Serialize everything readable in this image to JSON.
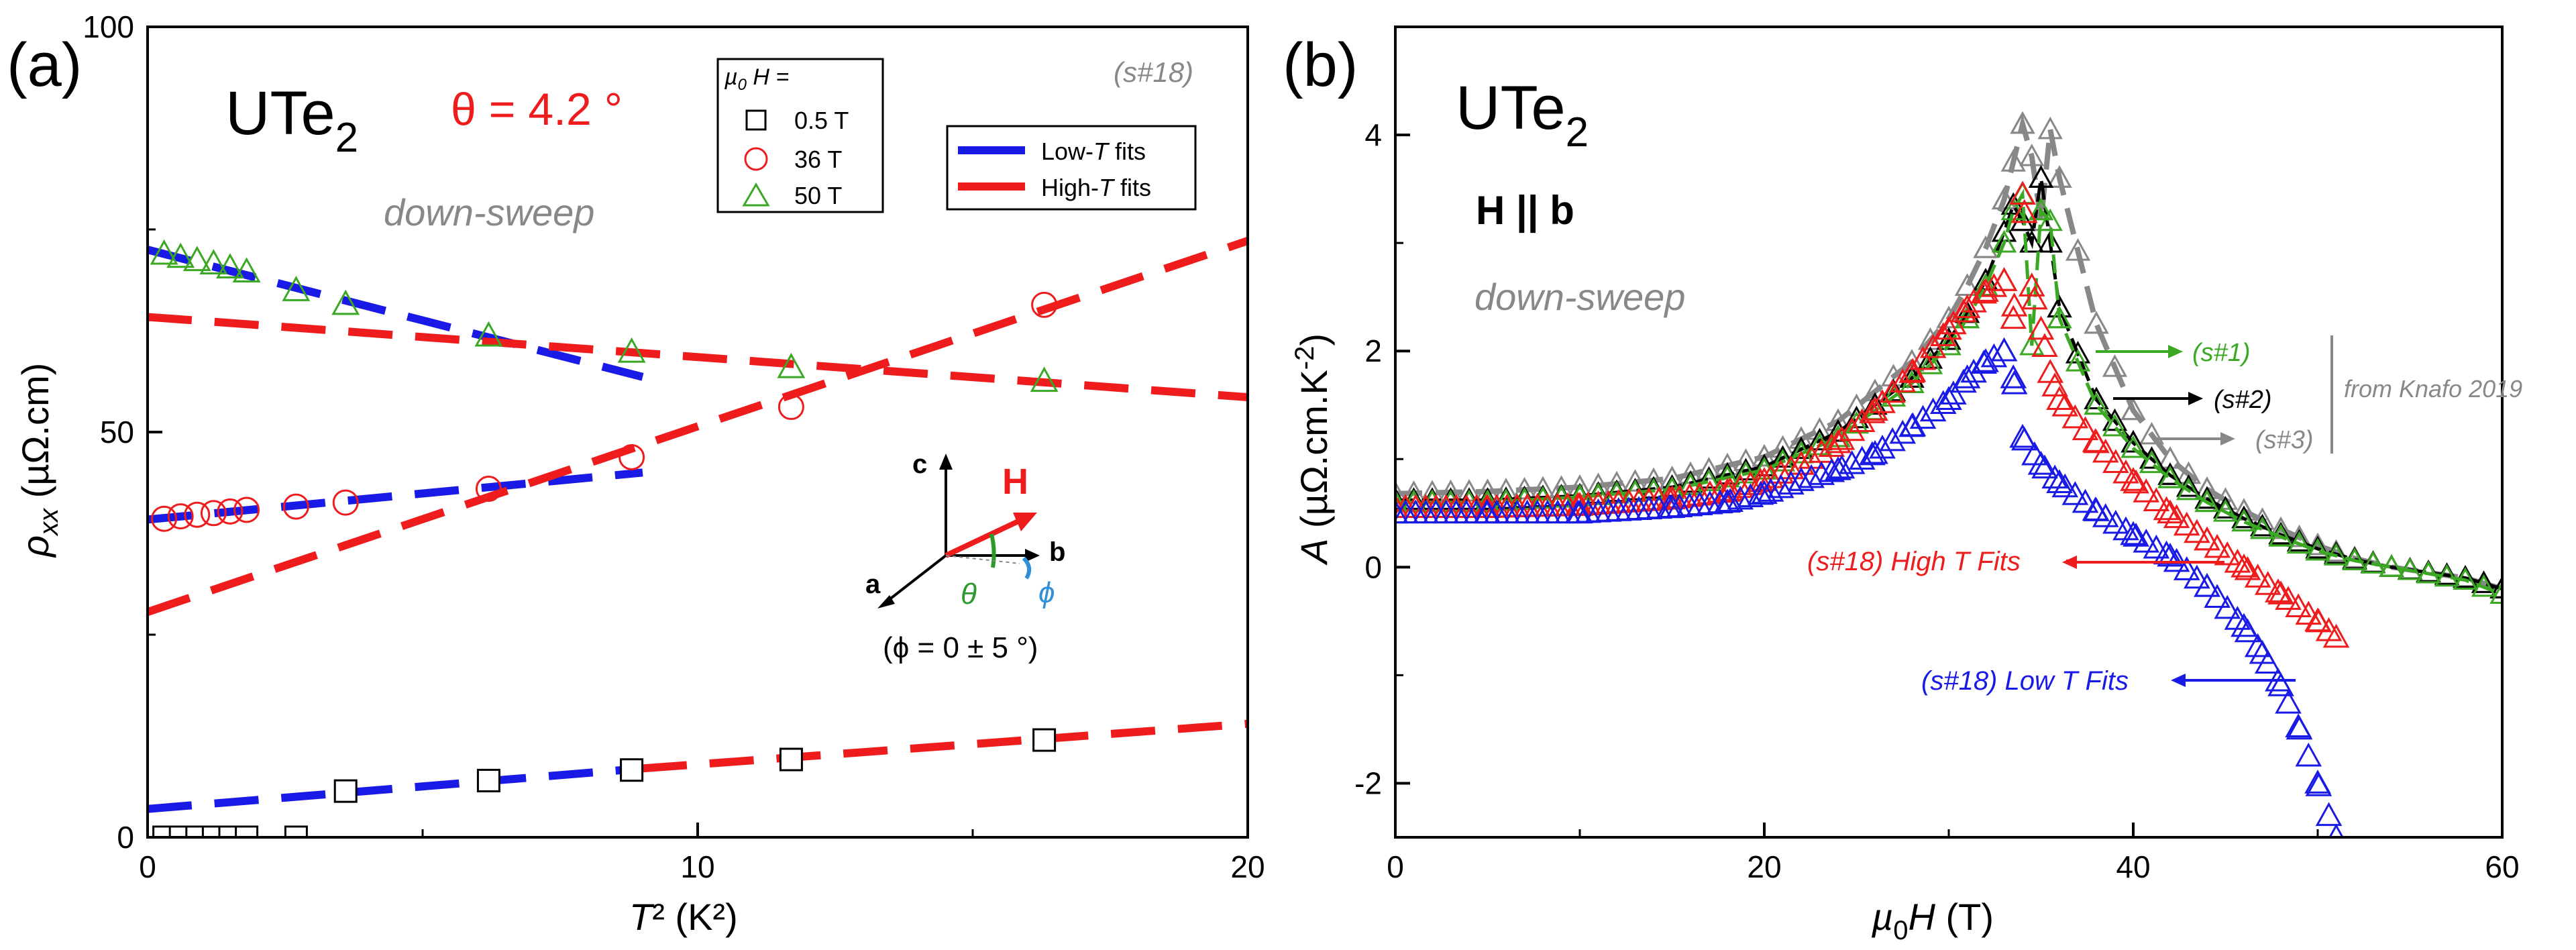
{
  "colors": {
    "blue": "#1a1ae6",
    "red": "#ee1c1c",
    "green": "#3aa822",
    "black": "#000000",
    "gray": "#888888",
    "cyan": "#2f8fd8",
    "dgreen": "#2a9a2a"
  },
  "chart_data": [
    {
      "type": "scatter",
      "panel": "(a)",
      "title": "UTe",
      "title_sub": "2",
      "theta_label": "θ = 4.2 °",
      "sample_tag": "(s#18)",
      "sweep_label": "down-sweep",
      "xlabel_main": "T² (K²)",
      "ylabel_rho": "ρ",
      "ylabel_sub": "xx",
      "ylabel_unit": " (µΩ.cm)",
      "xlim": [
        0,
        20
      ],
      "ylim": [
        0,
        100
      ],
      "xticks": [
        0,
        10,
        20
      ],
      "yticks": [
        0,
        50,
        100
      ],
      "legend_header_mu": "µ",
      "legend_header_sub": "0",
      "legend_header_rest": "H =",
      "legend_markers": [
        {
          "label": "0.5 T",
          "marker": "square",
          "color": "#000000"
        },
        {
          "label": "36 T",
          "marker": "circle",
          "color": "#ee1c1c"
        },
        {
          "label": "50 T",
          "marker": "triangle",
          "color": "#3aa822"
        }
      ],
      "legend_fits": [
        {
          "label_pre": "Low-",
          "label_T": "T",
          "label_post": " fits",
          "color": "#1a1ae6"
        },
        {
          "label_pre": "High-",
          "label_T": "T",
          "label_post": " fits",
          "color": "#ee1c1c"
        }
      ],
      "series": [
        {
          "name": "0.5 T",
          "marker": "square",
          "color": "#000000",
          "x": [
            0.3,
            0.6,
            0.9,
            1.2,
            1.5,
            1.8,
            2.7,
            3.6,
            6.2,
            8.8,
            11.7,
            16.3
          ],
          "y": [
            0,
            0,
            0,
            0,
            0,
            0,
            0,
            5.7,
            7.0,
            8.3,
            9.6,
            12.0
          ]
        },
        {
          "name": "36 T",
          "marker": "circle",
          "color": "#ee1c1c",
          "x": [
            0.3,
            0.6,
            0.9,
            1.2,
            1.5,
            1.8,
            2.7,
            3.6,
            6.2,
            8.8,
            11.7,
            16.3
          ],
          "y": [
            39.3,
            39.6,
            39.8,
            40.0,
            40.2,
            40.4,
            40.8,
            41.3,
            43.0,
            46.9,
            53.1,
            65.7
          ]
        },
        {
          "name": "50 T",
          "marker": "triangle",
          "color": "#3aa822",
          "x": [
            0.3,
            0.6,
            0.9,
            1.2,
            1.5,
            1.8,
            2.7,
            3.6,
            6.2,
            8.8,
            11.7,
            16.3
          ],
          "y": [
            72.0,
            71.6,
            71.2,
            70.8,
            70.3,
            69.8,
            67.5,
            65.8,
            61.9,
            59.9,
            58.0,
            56.3
          ]
        }
      ],
      "fits": [
        {
          "name": "Low-T 0.5 T",
          "color": "#1a1ae6",
          "x": [
            0,
            9
          ],
          "y": [
            3.5,
            8.5
          ]
        },
        {
          "name": "High-T 0.5 T",
          "color": "#ee1c1c",
          "x": [
            9,
            20
          ],
          "y": [
            8.5,
            14.0
          ]
        },
        {
          "name": "Low-T 36 T",
          "color": "#1a1ae6",
          "x": [
            0,
            9
          ],
          "y": [
            39.2,
            45.0
          ]
        },
        {
          "name": "High-T 36 T",
          "color": "#ee1c1c",
          "x": [
            0,
            20
          ],
          "y": [
            27.8,
            73.6
          ]
        },
        {
          "name": "Low-T 50 T",
          "color": "#1a1ae6",
          "x": [
            0,
            9
          ],
          "y": [
            72.5,
            56.8
          ]
        },
        {
          "name": "High-T 50 T",
          "color": "#ee1c1c",
          "x": [
            0,
            20
          ],
          "y": [
            64.2,
            54.3
          ]
        }
      ],
      "axes_labels": {
        "c": "c",
        "a": "a",
        "b": "b",
        "H": "H",
        "theta": "θ",
        "phi": "ϕ"
      },
      "phi_note": "(ϕ = 0 ± 5 °)"
    },
    {
      "type": "scatter",
      "panel": "(b)",
      "title": "UTe",
      "title_sub": "2",
      "field_dir": "H || b",
      "sweep_label": "down-sweep",
      "xlabel_mu": "µ",
      "xlabel_sub": "0",
      "xlabel_rest": "H (T)",
      "ylabel_A": "A",
      "ylabel_unit": " (µΩ.cm.K",
      "ylabel_exp": "-2",
      "ylabel_close": ")",
      "xlim": [
        0,
        60
      ],
      "ylim": [
        -2.5,
        5
      ],
      "xticks": [
        0,
        20,
        40,
        60
      ],
      "yticks": [
        -2,
        0,
        2,
        4
      ],
      "annotations": [
        {
          "text": "(s#1)",
          "color": "#3aa822"
        },
        {
          "text": "(s#2)",
          "color": "#000000"
        },
        {
          "text": "(s#3)",
          "color": "#888888"
        },
        {
          "text": "from Knafo 2019",
          "color": "#888888"
        },
        {
          "text": "(s#18) High T Fits",
          "color": "#ee1c1c"
        },
        {
          "text": "(s#18) Low T Fits",
          "color": "#1a1ae6"
        }
      ],
      "series": [
        {
          "name": "(s#18) Low T Fits",
          "color": "#1a1ae6",
          "marker": "triangle",
          "x": [
            0,
            5,
            10,
            15,
            18,
            20,
            22,
            24,
            26,
            28,
            30,
            31,
            32,
            33,
            33.5,
            34,
            35,
            36,
            38,
            40,
            42,
            44,
            46,
            47,
            48,
            49,
            50,
            51
          ],
          "y": [
            0.5,
            0.5,
            0.5,
            0.55,
            0.6,
            0.68,
            0.8,
            0.9,
            1.05,
            1.3,
            1.55,
            1.75,
            1.9,
            2.0,
            1.75,
            1.2,
            0.95,
            0.78,
            0.52,
            0.3,
            0.1,
            -0.18,
            -0.55,
            -0.8,
            -1.1,
            -1.5,
            -2.0,
            -2.5
          ]
        },
        {
          "name": "(s#18) High T Fits",
          "color": "#ee1c1c",
          "marker": "triangle",
          "x": [
            0,
            5,
            10,
            15,
            18,
            20,
            22,
            24,
            26,
            28,
            30,
            31,
            32,
            33,
            33.5,
            34,
            34.5,
            35,
            35.5,
            36,
            38,
            40,
            42,
            44,
            46,
            48,
            50,
            51
          ],
          "y": [
            0.55,
            0.55,
            0.57,
            0.63,
            0.7,
            0.8,
            0.95,
            1.15,
            1.45,
            1.8,
            2.2,
            2.4,
            2.55,
            2.65,
            2.3,
            3.45,
            2.6,
            2.2,
            1.8,
            1.55,
            1.15,
            0.8,
            0.5,
            0.25,
            0.0,
            -0.25,
            -0.5,
            -0.65
          ]
        },
        {
          "name": "(s#1)",
          "color": "#3aa822",
          "marker": "triangle",
          "x": [
            0,
            5,
            10,
            15,
            20,
            24,
            28,
            30,
            31,
            32,
            33,
            33.5,
            34,
            34.5,
            35,
            35.5,
            36,
            38,
            40,
            42,
            44,
            46,
            48,
            50,
            52,
            54,
            56,
            58,
            60
          ],
          "y": [
            0.6,
            0.6,
            0.65,
            0.72,
            0.9,
            1.2,
            1.7,
            2.05,
            2.3,
            2.6,
            3.0,
            3.3,
            3.45,
            2.05,
            3.3,
            3.2,
            2.3,
            1.5,
            1.1,
            0.82,
            0.6,
            0.42,
            0.28,
            0.15,
            0.06,
            0.0,
            -0.06,
            -0.12,
            -0.25
          ]
        },
        {
          "name": "(s#2)",
          "color": "#000000",
          "marker": "triangle",
          "x": [
            0,
            5,
            10,
            15,
            20,
            24,
            28,
            30,
            31,
            32,
            33,
            33.5,
            34,
            34.5,
            35,
            35.5,
            36,
            38,
            40,
            42,
            44,
            46,
            48,
            50,
            52,
            54,
            56,
            58,
            60
          ],
          "y": [
            0.62,
            0.62,
            0.66,
            0.74,
            0.93,
            1.25,
            1.75,
            2.1,
            2.35,
            2.65,
            3.1,
            3.35,
            3.2,
            3.0,
            3.6,
            3.0,
            2.4,
            1.55,
            1.15,
            0.85,
            0.63,
            0.45,
            0.3,
            0.17,
            0.07,
            0.0,
            -0.05,
            -0.1,
            -0.2
          ]
        },
        {
          "name": "(s#3)",
          "color": "#888888",
          "marker": "triangle",
          "x": [
            0,
            5,
            10,
            15,
            20,
            24,
            28,
            30,
            31,
            32,
            33,
            33.5,
            34,
            34.5,
            35,
            35.5,
            36,
            38,
            40,
            42,
            44,
            46,
            48,
            50,
            52,
            54,
            56,
            58,
            60
          ],
          "y": [
            0.68,
            0.7,
            0.74,
            0.82,
            1.02,
            1.35,
            1.9,
            2.3,
            2.6,
            2.95,
            3.4,
            3.75,
            4.1,
            3.8,
            3.2,
            4.05,
            3.6,
            2.25,
            1.45,
            1.0,
            0.72,
            0.52,
            0.35,
            0.2,
            0.08,
            0.0,
            -0.05,
            -0.1,
            -0.2
          ]
        }
      ]
    }
  ]
}
